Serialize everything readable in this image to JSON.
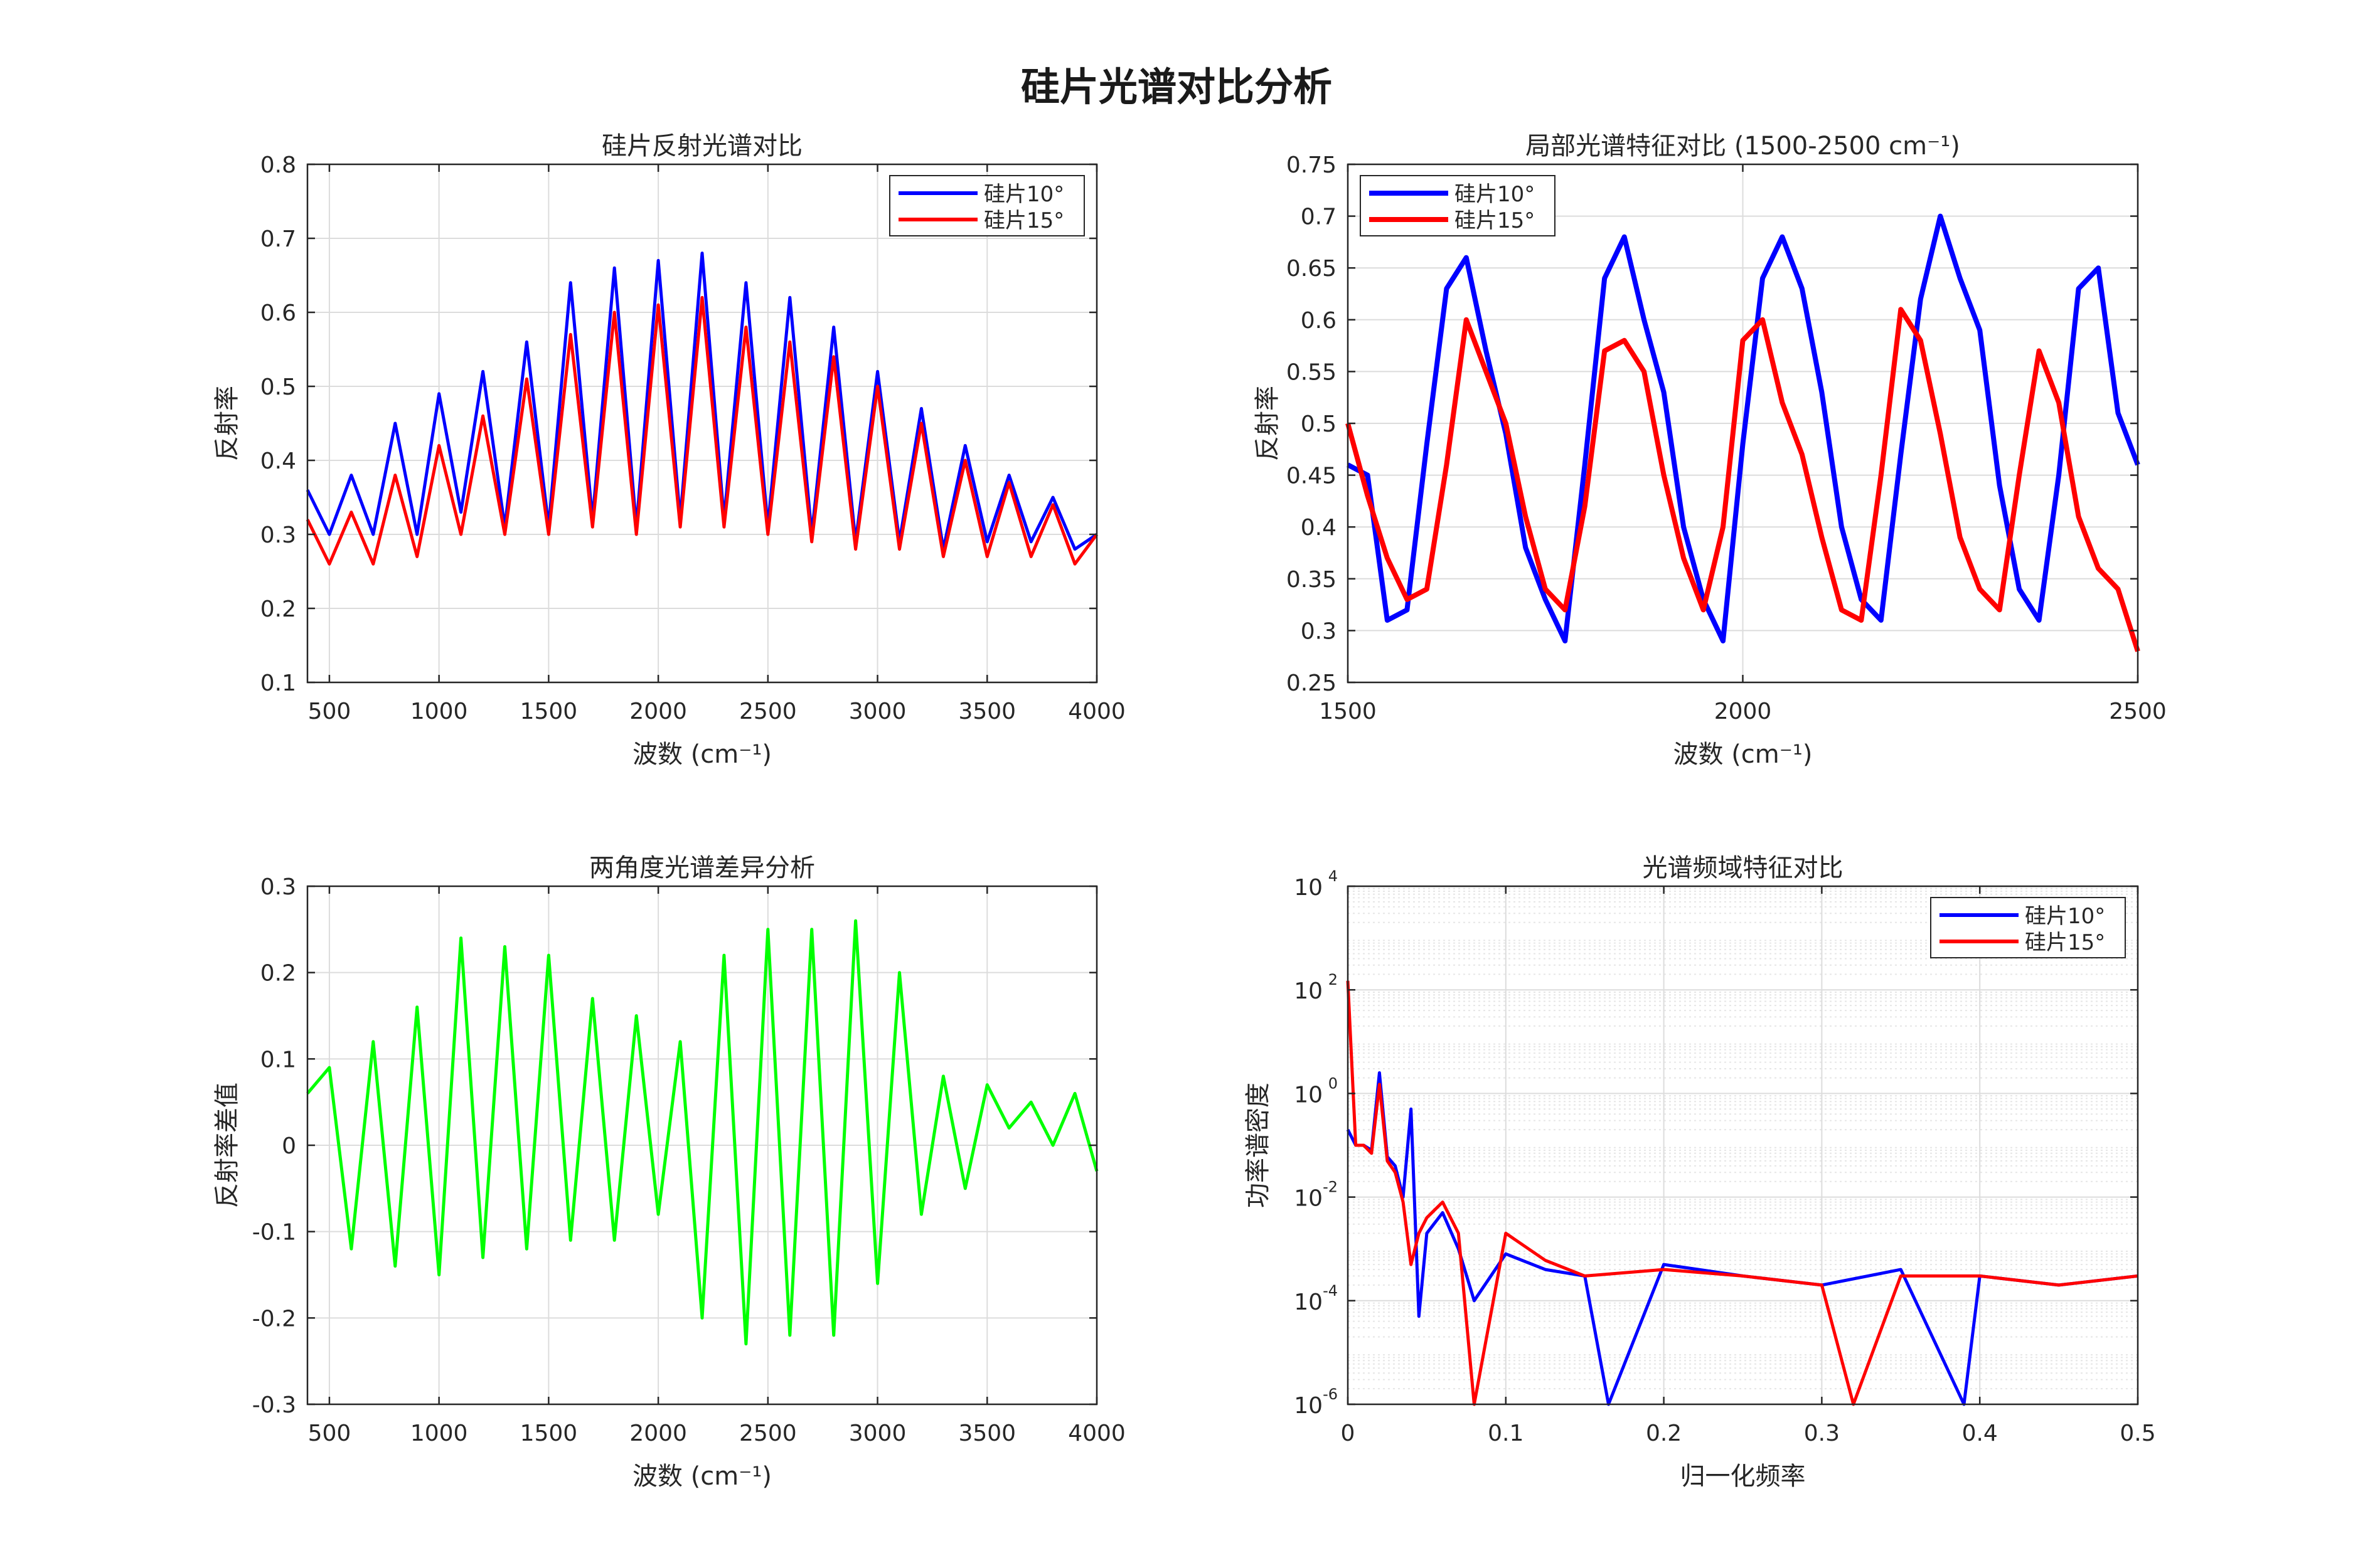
{
  "figure": {
    "title": "硅片光谱对比分析"
  },
  "chart_data": [
    {
      "type": "line",
      "title": "硅片反射光谱对比",
      "xlabel": "波数 (cm⁻¹)",
      "ylabel": "反射率",
      "xlim": [
        400,
        4000
      ],
      "ylim": [
        0.1,
        0.8
      ],
      "xticks": [
        500,
        1000,
        1500,
        2000,
        2500,
        3000,
        3500,
        4000
      ],
      "yticks": [
        0.1,
        0.2,
        0.3,
        0.4,
        0.5,
        0.6,
        0.7,
        0.8
      ],
      "grid": true,
      "legend": "top-right",
      "series": [
        {
          "name": "硅片10°",
          "color": "#0000ff",
          "x": [
            400,
            500,
            600,
            700,
            800,
            900,
            1000,
            1100,
            1200,
            1300,
            1400,
            1500,
            1600,
            1700,
            1800,
            1900,
            2000,
            2100,
            2200,
            2300,
            2400,
            2500,
            2600,
            2700,
            2800,
            2900,
            3000,
            3100,
            3200,
            3300,
            3400,
            3500,
            3600,
            3700,
            3800,
            3900,
            4000
          ],
          "y": [
            0.36,
            0.3,
            0.38,
            0.3,
            0.45,
            0.3,
            0.49,
            0.33,
            0.52,
            0.31,
            0.56,
            0.31,
            0.64,
            0.32,
            0.66,
            0.31,
            0.67,
            0.32,
            0.68,
            0.32,
            0.64,
            0.31,
            0.62,
            0.3,
            0.58,
            0.29,
            0.52,
            0.29,
            0.47,
            0.28,
            0.42,
            0.29,
            0.38,
            0.29,
            0.35,
            0.28,
            0.3
          ]
        },
        {
          "name": "硅片15°",
          "color": "#ff0000",
          "x": [
            400,
            500,
            600,
            700,
            800,
            900,
            1000,
            1100,
            1200,
            1300,
            1400,
            1500,
            1600,
            1700,
            1800,
            1900,
            2000,
            2100,
            2200,
            2300,
            2400,
            2500,
            2600,
            2700,
            2800,
            2900,
            3000,
            3100,
            3200,
            3300,
            3400,
            3500,
            3600,
            3700,
            3800,
            3900,
            4000
          ],
          "y": [
            0.32,
            0.26,
            0.33,
            0.26,
            0.38,
            0.27,
            0.42,
            0.3,
            0.46,
            0.3,
            0.51,
            0.3,
            0.57,
            0.31,
            0.6,
            0.3,
            0.61,
            0.31,
            0.62,
            0.31,
            0.58,
            0.3,
            0.56,
            0.29,
            0.54,
            0.28,
            0.5,
            0.28,
            0.45,
            0.27,
            0.4,
            0.27,
            0.37,
            0.27,
            0.34,
            0.26,
            0.3
          ]
        }
      ]
    },
    {
      "type": "line",
      "title": "局部光谱特征对比 (1500-2500 cm⁻¹)",
      "xlabel": "波数 (cm⁻¹)",
      "ylabel": "反射率",
      "xlim": [
        1500,
        2500
      ],
      "ylim": [
        0.25,
        0.75
      ],
      "xticks": [
        1500,
        2000,
        2500
      ],
      "yticks": [
        0.25,
        0.3,
        0.35,
        0.4,
        0.45,
        0.5,
        0.55,
        0.6,
        0.65,
        0.7,
        0.75
      ],
      "grid": true,
      "legend": "top-left",
      "series": [
        {
          "name": "硅片10°",
          "color": "#0000ff",
          "x": [
            1500,
            1525,
            1550,
            1575,
            1600,
            1625,
            1650,
            1675,
            1700,
            1725,
            1750,
            1775,
            1800,
            1825,
            1850,
            1875,
            1900,
            1925,
            1950,
            1975,
            2000,
            2025,
            2050,
            2075,
            2100,
            2125,
            2150,
            2175,
            2200,
            2225,
            2250,
            2275,
            2300,
            2325,
            2350,
            2375,
            2400,
            2425,
            2450,
            2475,
            2500
          ],
          "y": [
            0.46,
            0.45,
            0.31,
            0.32,
            0.48,
            0.63,
            0.66,
            0.57,
            0.49,
            0.38,
            0.33,
            0.29,
            0.46,
            0.64,
            0.68,
            0.6,
            0.53,
            0.4,
            0.33,
            0.29,
            0.48,
            0.64,
            0.68,
            0.63,
            0.53,
            0.4,
            0.33,
            0.31,
            0.47,
            0.62,
            0.7,
            0.64,
            0.59,
            0.44,
            0.34,
            0.31,
            0.45,
            0.63,
            0.65,
            0.51,
            0.46
          ]
        },
        {
          "name": "硅片15°",
          "color": "#ff0000",
          "x": [
            1500,
            1525,
            1550,
            1575,
            1600,
            1625,
            1650,
            1675,
            1700,
            1725,
            1750,
            1775,
            1800,
            1825,
            1850,
            1875,
            1900,
            1925,
            1950,
            1975,
            2000,
            2025,
            2050,
            2075,
            2100,
            2125,
            2150,
            2175,
            2200,
            2225,
            2250,
            2275,
            2300,
            2325,
            2350,
            2375,
            2400,
            2425,
            2450,
            2475,
            2500
          ],
          "y": [
            0.5,
            0.43,
            0.37,
            0.33,
            0.34,
            0.46,
            0.6,
            0.55,
            0.5,
            0.41,
            0.34,
            0.32,
            0.42,
            0.57,
            0.58,
            0.55,
            0.45,
            0.37,
            0.32,
            0.4,
            0.58,
            0.6,
            0.52,
            0.47,
            0.39,
            0.32,
            0.31,
            0.45,
            0.61,
            0.58,
            0.49,
            0.39,
            0.34,
            0.32,
            0.45,
            0.57,
            0.52,
            0.41,
            0.36,
            0.34,
            0.28
          ]
        }
      ]
    },
    {
      "type": "line",
      "title": "两角度光谱差异分析",
      "xlabel": "波数 (cm⁻¹)",
      "ylabel": "反射率差值",
      "xlim": [
        400,
        4000
      ],
      "ylim": [
        -0.3,
        0.3
      ],
      "xticks": [
        500,
        1000,
        1500,
        2000,
        2500,
        3000,
        3500,
        4000
      ],
      "yticks": [
        -0.3,
        -0.2,
        -0.1,
        0,
        0.1,
        0.2,
        0.3
      ],
      "grid": true,
      "series": [
        {
          "color": "#00ff00",
          "x": [
            400,
            500,
            600,
            700,
            800,
            900,
            1000,
            1100,
            1200,
            1300,
            1400,
            1500,
            1600,
            1700,
            1800,
            1900,
            2000,
            2100,
            2200,
            2300,
            2400,
            2500,
            2600,
            2700,
            2800,
            2900,
            3000,
            3100,
            3200,
            3300,
            3400,
            3500,
            3600,
            3700,
            3800,
            3900,
            4000
          ],
          "y": [
            0.06,
            0.09,
            -0.12,
            0.12,
            -0.14,
            0.16,
            -0.15,
            0.24,
            -0.13,
            0.23,
            -0.12,
            0.22,
            -0.11,
            0.17,
            -0.11,
            0.15,
            -0.08,
            0.12,
            -0.2,
            0.22,
            -0.23,
            0.25,
            -0.22,
            0.25,
            -0.22,
            0.26,
            -0.16,
            0.2,
            -0.08,
            0.08,
            -0.05,
            0.07,
            0.02,
            0.05,
            0.0,
            0.06,
            -0.03
          ]
        }
      ]
    },
    {
      "type": "line",
      "title": "光谱频域特征对比",
      "xlabel": "归一化频率",
      "ylabel": "功率谱密度",
      "xlim": [
        0,
        0.5
      ],
      "ylim": [
        1e-06,
        10000.0
      ],
      "xticks": [
        0,
        0.1,
        0.2,
        0.3,
        0.4,
        0.5
      ],
      "yticks": [
        -6,
        -4,
        -2,
        0,
        2,
        4
      ],
      "yscale": "log",
      "grid": true,
      "legend": "top-right",
      "series": [
        {
          "name": "硅片10°",
          "color": "#0000ff",
          "x": [
            0,
            0.005,
            0.01,
            0.015,
            0.02,
            0.025,
            0.03,
            0.035,
            0.04,
            0.045,
            0.05,
            0.06,
            0.07,
            0.08,
            0.1,
            0.125,
            0.15,
            0.165,
            0.2,
            0.25,
            0.3,
            0.35,
            0.39,
            0.4,
            0.45,
            0.5
          ],
          "y": [
            0.2,
            0.1,
            0.1,
            0.08,
            2.5,
            0.06,
            0.04,
            0.01,
            0.5,
            5e-05,
            0.002,
            0.005,
            0.001,
            0.0001,
            0.0008,
            0.0004,
            0.0003,
            1e-06,
            0.0005,
            0.0003,
            0.0002,
            0.0004,
            1e-06,
            0.0003,
            0.0002,
            0.0003
          ]
        },
        {
          "name": "硅片15°",
          "color": "#ff0000",
          "x": [
            0,
            0.005,
            0.01,
            0.015,
            0.02,
            0.025,
            0.03,
            0.035,
            0.04,
            0.045,
            0.05,
            0.06,
            0.07,
            0.08,
            0.1,
            0.125,
            0.15,
            0.2,
            0.25,
            0.3,
            0.32,
            0.35,
            0.4,
            0.45,
            0.5
          ],
          "y": [
            150,
            0.1,
            0.1,
            0.07,
            1.5,
            0.05,
            0.03,
            0.008,
            0.0005,
            0.002,
            0.004,
            0.008,
            0.002,
            1e-06,
            0.002,
            0.0006,
            0.0003,
            0.0004,
            0.0003,
            0.0002,
            1e-06,
            0.0003,
            0.0003,
            0.0002,
            0.0003
          ]
        }
      ]
    }
  ]
}
